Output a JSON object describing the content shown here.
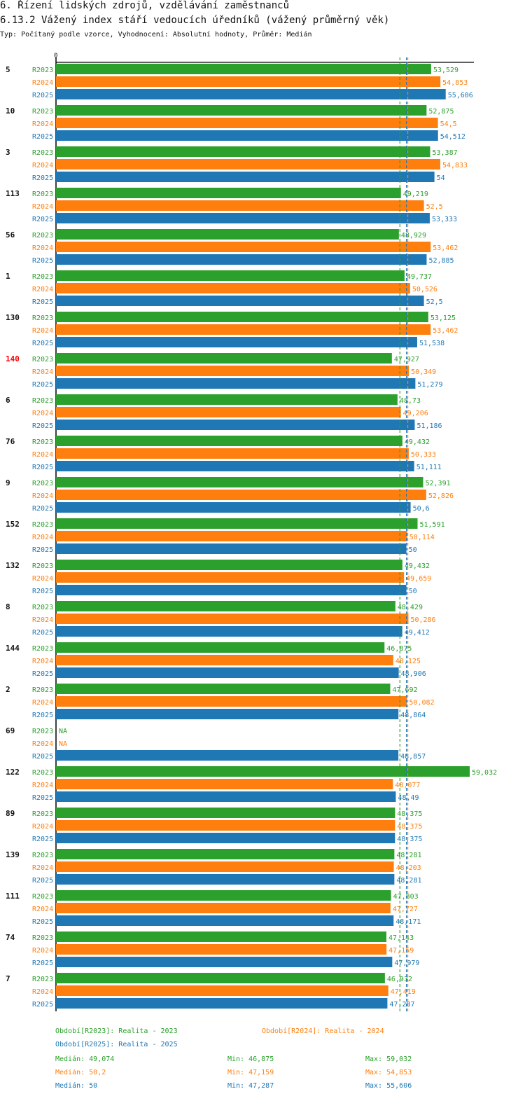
{
  "header": {
    "section_title": "6. Řízení lidských zdrojů, vzdělávání zaměstnanců",
    "chart_title": "6.13.2 Vážený index stáří vedoucích úředníků (vážený průměrný věk)",
    "subtitle": "Typ: Počítaný podle vzorce, Vyhodnocení: Absolutní hodnoty, Průměr: Medián"
  },
  "colors": {
    "R2023": "#2ca02c",
    "R2024": "#ff7f0e",
    "R2025": "#1f77b4",
    "highlight": "#ff0000",
    "text": "#111111"
  },
  "chart_data": {
    "type": "bar",
    "orientation": "horizontal",
    "axis_zero_label": "0",
    "xlim": [
      0,
      59.032
    ],
    "series_names": [
      "R2023",
      "R2024",
      "R2025"
    ],
    "highlight_category": "140",
    "groups": [
      {
        "id": "5",
        "values": [
          53.529,
          54.853,
          55.606
        ],
        "labels": [
          "53,529",
          "54,853",
          "55,606"
        ]
      },
      {
        "id": "10",
        "values": [
          52.875,
          54.5,
          54.512
        ],
        "labels": [
          "52,875",
          "54,5",
          "54,512"
        ]
      },
      {
        "id": "3",
        "values": [
          53.387,
          54.833,
          54
        ],
        "labels": [
          "53,387",
          "54,833",
          "54"
        ]
      },
      {
        "id": "113",
        "values": [
          49.219,
          52.5,
          53.333
        ],
        "labels": [
          "49,219",
          "52,5",
          "53,333"
        ]
      },
      {
        "id": "56",
        "values": [
          48.929,
          53.462,
          52.885
        ],
        "labels": [
          "48,929",
          "53,462",
          "52,885"
        ]
      },
      {
        "id": "1",
        "values": [
          49.737,
          50.526,
          52.5
        ],
        "labels": [
          "49,737",
          "50,526",
          "52,5"
        ]
      },
      {
        "id": "130",
        "values": [
          53.125,
          53.462,
          51.538
        ],
        "labels": [
          "53,125",
          "53,462",
          "51,538"
        ]
      },
      {
        "id": "140",
        "values": [
          47.927,
          50.349,
          51.279
        ],
        "labels": [
          "47,927",
          "50,349",
          "51,279"
        ]
      },
      {
        "id": "6",
        "values": [
          48.73,
          49.206,
          51.186
        ],
        "labels": [
          "48,73",
          "49,206",
          "51,186"
        ]
      },
      {
        "id": "76",
        "values": [
          49.432,
          50.333,
          51.111
        ],
        "labels": [
          "49,432",
          "50,333",
          "51,111"
        ]
      },
      {
        "id": "9",
        "values": [
          52.391,
          52.826,
          50.6
        ],
        "labels": [
          "52,391",
          "52,826",
          "50,6"
        ]
      },
      {
        "id": "152",
        "values": [
          51.591,
          50.114,
          50
        ],
        "labels": [
          "51,591",
          "50,114",
          "50"
        ]
      },
      {
        "id": "132",
        "values": [
          49.432,
          49.659,
          50
        ],
        "labels": [
          "49,432",
          "49,659",
          "50"
        ]
      },
      {
        "id": "8",
        "values": [
          48.429,
          50.286,
          49.412
        ],
        "labels": [
          "48,429",
          "50,286",
          "49,412"
        ]
      },
      {
        "id": "144",
        "values": [
          46.875,
          48.125,
          48.906
        ],
        "labels": [
          "46,875",
          "48,125",
          "48,906"
        ]
      },
      {
        "id": "2",
        "values": [
          47.692,
          50.082,
          48.864
        ],
        "labels": [
          "47,692",
          "50,082",
          "48,864"
        ]
      },
      {
        "id": "69",
        "values": [
          null,
          null,
          48.857
        ],
        "labels": [
          "NA",
          "NA",
          "48,857"
        ]
      },
      {
        "id": "122",
        "values": [
          59.032,
          48.077,
          48.49
        ],
        "labels": [
          "59,032",
          "48,077",
          "48,49"
        ]
      },
      {
        "id": "89",
        "values": [
          48.375,
          48.375,
          48.375
        ],
        "labels": [
          "48,375",
          "48,375",
          "48,375"
        ]
      },
      {
        "id": "139",
        "values": [
          48.281,
          48.203,
          48.281
        ],
        "labels": [
          "48,281",
          "48,203",
          "48,281"
        ]
      },
      {
        "id": "111",
        "values": [
          47.803,
          47.727,
          48.171
        ],
        "labels": [
          "47,803",
          "47,727",
          "48,171"
        ]
      },
      {
        "id": "74",
        "values": [
          47.143,
          47.159,
          47.979
        ],
        "labels": [
          "47,143",
          "47,159",
          "47,979"
        ]
      },
      {
        "id": "7",
        "values": [
          46.932,
          47.419,
          47.287
        ],
        "labels": [
          "46,932",
          "47,419",
          "47,287"
        ]
      }
    ],
    "medians": [
      49.074,
      50.2,
      50
    ]
  },
  "legend": {
    "items": [
      "Období[R2023]: Realita - 2023",
      "Období[R2024]: Realita - 2024",
      "Období[R2025]: Realita - 2025"
    ]
  },
  "stats": [
    {
      "median": "Medián: 49,074",
      "min": "Min: 46,875",
      "max": "Max: 59,032"
    },
    {
      "median": "Medián: 50,2",
      "min": "Min: 47,159",
      "max": "Max: 54,853"
    },
    {
      "median": "Medián: 50",
      "min": "Min: 47,287",
      "max": "Max: 55,606"
    }
  ]
}
